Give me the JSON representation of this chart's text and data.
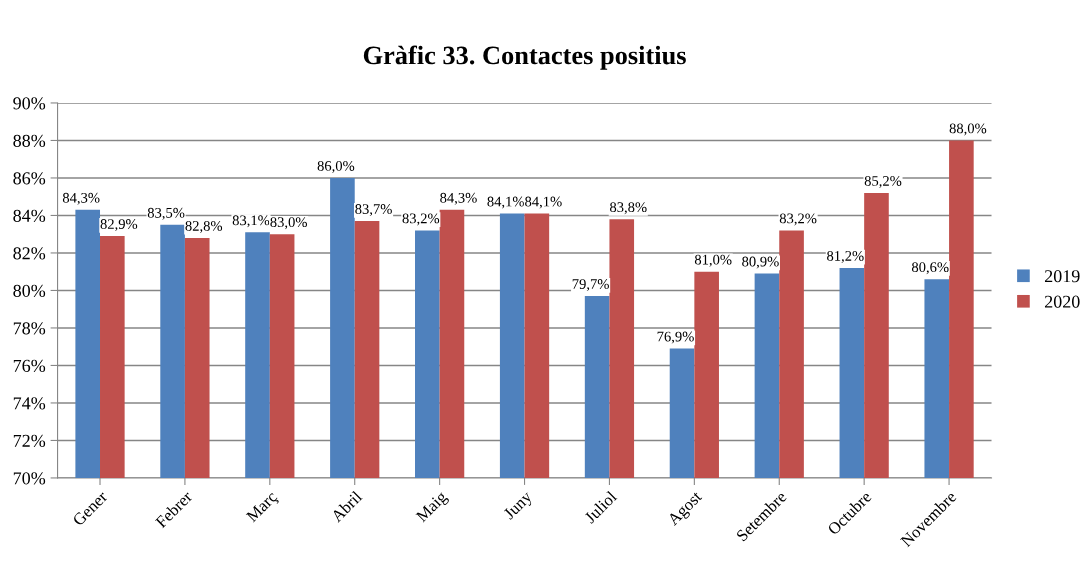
{
  "chart_data": {
    "type": "bar",
    "title": "Gràfic 33. Contactes positius",
    "categories": [
      "Gener",
      "Febrer",
      "Març",
      "Abril",
      "Maig",
      "Juny",
      "Juliol",
      "Agost",
      "Setembre",
      "Octubre",
      "Novembre"
    ],
    "series": [
      {
        "name": "2019",
        "color": "#4f81bd",
        "values": [
          84.3,
          83.5,
          83.1,
          86.0,
          83.2,
          84.1,
          79.7,
          76.9,
          80.9,
          81.2,
          80.6
        ],
        "value_labels": [
          "84,3%",
          "83,5%",
          "83,1%",
          "86,0%",
          "83,2%",
          "84,1%",
          "79,7%",
          "76,9%",
          "80,9%",
          "81,2%",
          "80,6%"
        ]
      },
      {
        "name": "2020",
        "color": "#c0504d",
        "values": [
          82.9,
          82.8,
          83.0,
          83.7,
          84.3,
          84.1,
          83.8,
          81.0,
          83.2,
          85.2,
          88.0
        ],
        "value_labels": [
          "82,9%",
          "82,8%",
          "83,0%",
          "83,7%",
          "84,3%",
          "84,1%",
          "83,8%",
          "81,0%",
          "83,2%",
          "85,2%",
          "88,0%"
        ]
      }
    ],
    "ylim": [
      70,
      90
    ],
    "yticks": [
      {
        "value": 70,
        "label": "70%"
      },
      {
        "value": 72,
        "label": "72%"
      },
      {
        "value": 74,
        "label": "74%"
      },
      {
        "value": 76,
        "label": "76%"
      },
      {
        "value": 78,
        "label": "78%"
      },
      {
        "value": 80,
        "label": "80%"
      },
      {
        "value": 82,
        "label": "82%"
      },
      {
        "value": 84,
        "label": "84%"
      },
      {
        "value": 86,
        "label": "86%"
      },
      {
        "value": 88,
        "label": "88%"
      },
      {
        "value": 90,
        "label": "90%"
      }
    ],
    "grid": "y",
    "legend": "right"
  }
}
